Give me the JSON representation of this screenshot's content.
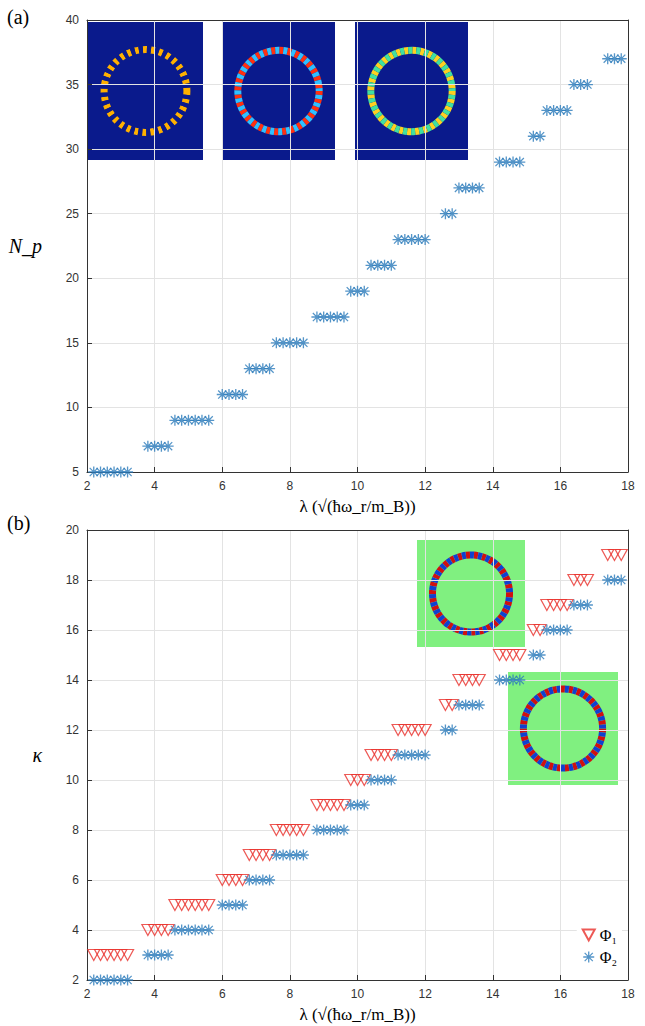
{
  "chart_data": [
    {
      "type": "scatter",
      "title": "(a)",
      "x_label": "λ (√(ħω_r/m_B))",
      "y_label": "N_p",
      "xlim": [
        2,
        18
      ],
      "xticks": [
        2,
        4,
        6,
        8,
        10,
        12,
        14,
        16,
        18
      ],
      "ylim": [
        5,
        40
      ],
      "yticks": [
        5,
        10,
        15,
        20,
        25,
        30,
        35,
        40
      ],
      "grid": true,
      "series": [
        {
          "color": "#2b7bba",
          "marker": "asterisk",
          "x": [
            2.2,
            2.4,
            2.6,
            2.8,
            3.0,
            3.2,
            3.8,
            4.0,
            4.2,
            4.4,
            4.6,
            4.8,
            5.0,
            5.2,
            5.4,
            5.6,
            6.0,
            6.2,
            6.4,
            6.6,
            6.8,
            7.0,
            7.2,
            7.4,
            7.6,
            7.8,
            8.0,
            8.2,
            8.4,
            8.8,
            9.0,
            9.2,
            9.4,
            9.6,
            9.8,
            10.0,
            10.2,
            10.4,
            10.6,
            10.8,
            11.0,
            11.2,
            11.4,
            11.6,
            11.8,
            12.0,
            12.6,
            12.8,
            13.0,
            13.2,
            13.4,
            13.6,
            14.2,
            14.4,
            14.6,
            14.8,
            15.2,
            15.4,
            15.6,
            15.8,
            16.0,
            16.2,
            16.4,
            16.6,
            16.8,
            17.4,
            17.6,
            17.8
          ],
          "values": [
            5,
            5,
            5,
            5,
            5,
            5,
            7,
            7,
            7,
            7,
            9,
            9,
            9,
            9,
            9,
            9,
            11,
            11,
            11,
            11,
            13,
            13,
            13,
            13,
            15,
            15,
            15,
            15,
            15,
            17,
            17,
            17,
            17,
            17,
            19,
            19,
            19,
            21,
            21,
            21,
            21,
            23,
            23,
            23,
            23,
            23,
            25,
            25,
            27,
            27,
            27,
            27,
            29,
            29,
            29,
            29,
            31,
            31,
            33,
            33,
            33,
            33,
            35,
            35,
            35,
            37,
            37,
            37
          ]
        }
      ]
    },
    {
      "type": "scatter",
      "title": "(b)",
      "x_label": "λ (√(ħω_r/m_B))",
      "y_label": "κ",
      "xlim": [
        2,
        18
      ],
      "xticks": [
        2,
        4,
        6,
        8,
        10,
        12,
        14,
        16,
        18
      ],
      "ylim": [
        2,
        20
      ],
      "yticks": [
        2,
        4,
        6,
        8,
        10,
        12,
        14,
        16,
        18,
        20
      ],
      "grid": true,
      "legend": "bottom-right",
      "series": [
        {
          "name": "Φ₁",
          "color": "#e8302a",
          "marker": "triangle-down",
          "x": [
            2.2,
            2.4,
            2.6,
            2.8,
            3.0,
            3.2,
            3.8,
            4.0,
            4.2,
            4.4,
            4.6,
            4.8,
            5.0,
            5.2,
            5.4,
            5.6,
            6.0,
            6.2,
            6.4,
            6.6,
            6.8,
            7.0,
            7.2,
            7.4,
            7.6,
            7.8,
            8.0,
            8.2,
            8.4,
            8.8,
            9.0,
            9.2,
            9.4,
            9.6,
            9.8,
            10.0,
            10.2,
            10.4,
            10.6,
            10.8,
            11.0,
            11.2,
            11.4,
            11.6,
            11.8,
            12.0,
            12.6,
            12.8,
            13.0,
            13.2,
            13.4,
            13.6,
            14.2,
            14.4,
            14.6,
            14.8,
            15.2,
            15.4,
            15.6,
            15.8,
            16.0,
            16.2,
            16.4,
            16.6,
            16.8,
            17.4,
            17.6,
            17.8
          ],
          "values": [
            3,
            3,
            3,
            3,
            3,
            3,
            4,
            4,
            4,
            4,
            5,
            5,
            5,
            5,
            5,
            5,
            6,
            6,
            6,
            6,
            7,
            7,
            7,
            7,
            8,
            8,
            8,
            8,
            8,
            9,
            9,
            9,
            9,
            9,
            10,
            10,
            10,
            11,
            11,
            11,
            11,
            12,
            12,
            12,
            12,
            12,
            13,
            13,
            14,
            14,
            14,
            14,
            15,
            15,
            15,
            15,
            16,
            16,
            17,
            17,
            17,
            17,
            18,
            18,
            18,
            19,
            19,
            19
          ]
        },
        {
          "name": "Φ₂",
          "color": "#2b7bba",
          "marker": "asterisk",
          "x": [
            2.2,
            2.4,
            2.6,
            2.8,
            3.0,
            3.2,
            3.8,
            4.0,
            4.2,
            4.4,
            4.6,
            4.8,
            5.0,
            5.2,
            5.4,
            5.6,
            6.0,
            6.2,
            6.4,
            6.6,
            6.8,
            7.0,
            7.2,
            7.4,
            7.6,
            7.8,
            8.0,
            8.2,
            8.4,
            8.8,
            9.0,
            9.2,
            9.4,
            9.6,
            9.8,
            10.0,
            10.2,
            10.4,
            10.6,
            10.8,
            11.0,
            11.2,
            11.4,
            11.6,
            11.8,
            12.0,
            12.6,
            12.8,
            13.0,
            13.2,
            13.4,
            13.6,
            14.2,
            14.4,
            14.6,
            14.8,
            15.2,
            15.4,
            15.6,
            15.8,
            16.0,
            16.2,
            16.4,
            16.6,
            16.8,
            17.4,
            17.6,
            17.8
          ],
          "values": [
            2,
            2,
            2,
            2,
            2,
            2,
            3,
            3,
            3,
            3,
            4,
            4,
            4,
            4,
            4,
            4,
            5,
            5,
            5,
            5,
            6,
            6,
            6,
            6,
            7,
            7,
            7,
            7,
            7,
            8,
            8,
            8,
            8,
            8,
            9,
            9,
            9,
            10,
            10,
            10,
            10,
            11,
            11,
            11,
            11,
            11,
            12,
            12,
            13,
            13,
            13,
            13,
            14,
            14,
            14,
            14,
            15,
            15,
            16,
            16,
            16,
            16,
            17,
            17,
            17,
            18,
            18,
            18
          ]
        }
      ]
    }
  ]
}
